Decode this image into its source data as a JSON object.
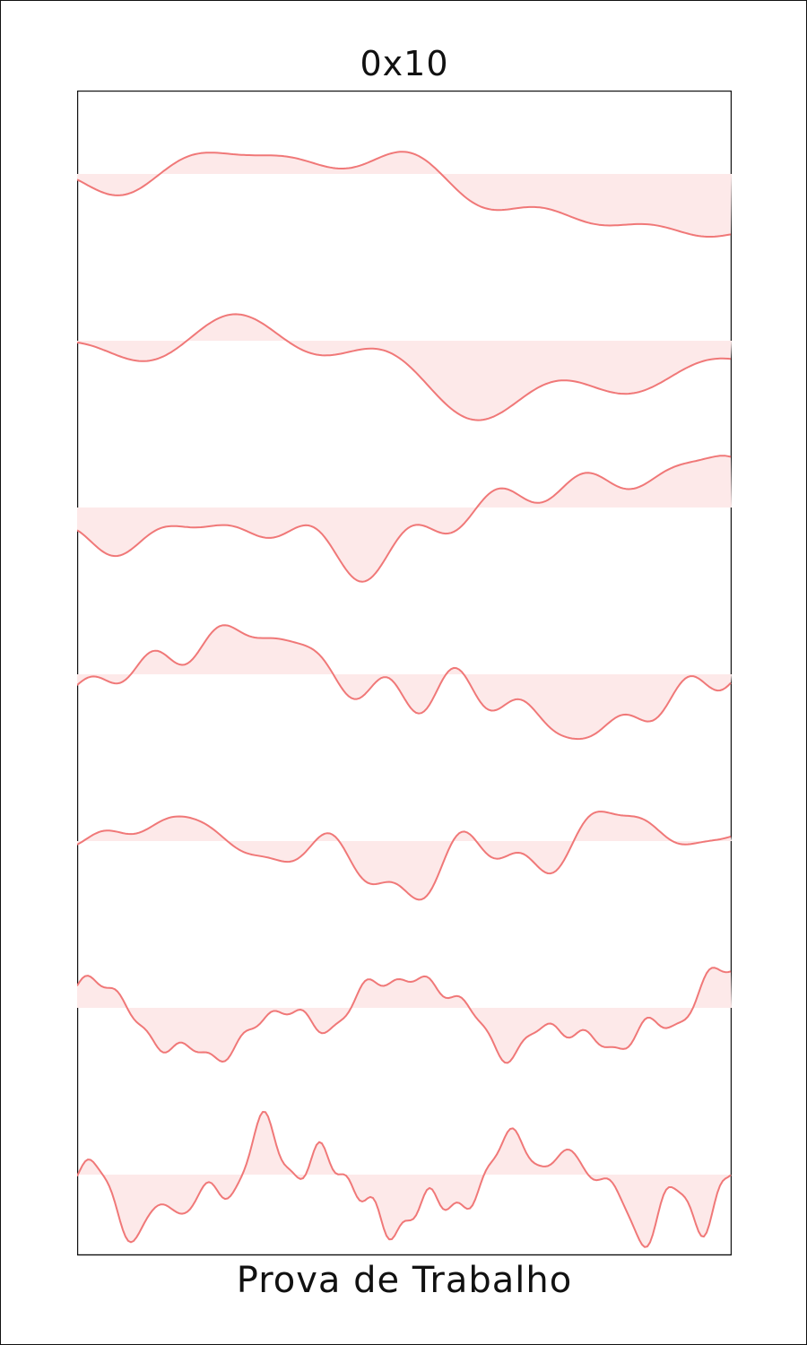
{
  "header": {
    "title": "0x10"
  },
  "footer": {
    "caption": "Prova de Trabalho"
  },
  "colors": {
    "stroke": "#f07878",
    "fill": "#fde9e9",
    "frame": "#111111"
  },
  "waves": [
    {
      "name": "wave-1",
      "baseline_level": 1,
      "amplitude": 1.0,
      "roughness": 1,
      "seed": 11
    },
    {
      "name": "wave-2",
      "baseline_level": 2,
      "amplitude": 1.0,
      "roughness": 1,
      "seed": 23
    },
    {
      "name": "wave-3",
      "baseline_level": 3,
      "amplitude": 1.0,
      "roughness": 1.3,
      "seed": 37
    },
    {
      "name": "wave-4",
      "baseline_level": 4,
      "amplitude": 0.9,
      "roughness": 2,
      "seed": 41
    },
    {
      "name": "wave-5",
      "baseline_level": 5,
      "amplitude": 0.7,
      "roughness": 2.6,
      "seed": 53
    },
    {
      "name": "wave-6",
      "baseline_level": 6,
      "amplitude": 0.8,
      "roughness": 3.6,
      "seed": 67
    },
    {
      "name": "wave-7",
      "baseline_level": 7,
      "amplitude": 0.9,
      "roughness": 5,
      "seed": 79
    }
  ]
}
